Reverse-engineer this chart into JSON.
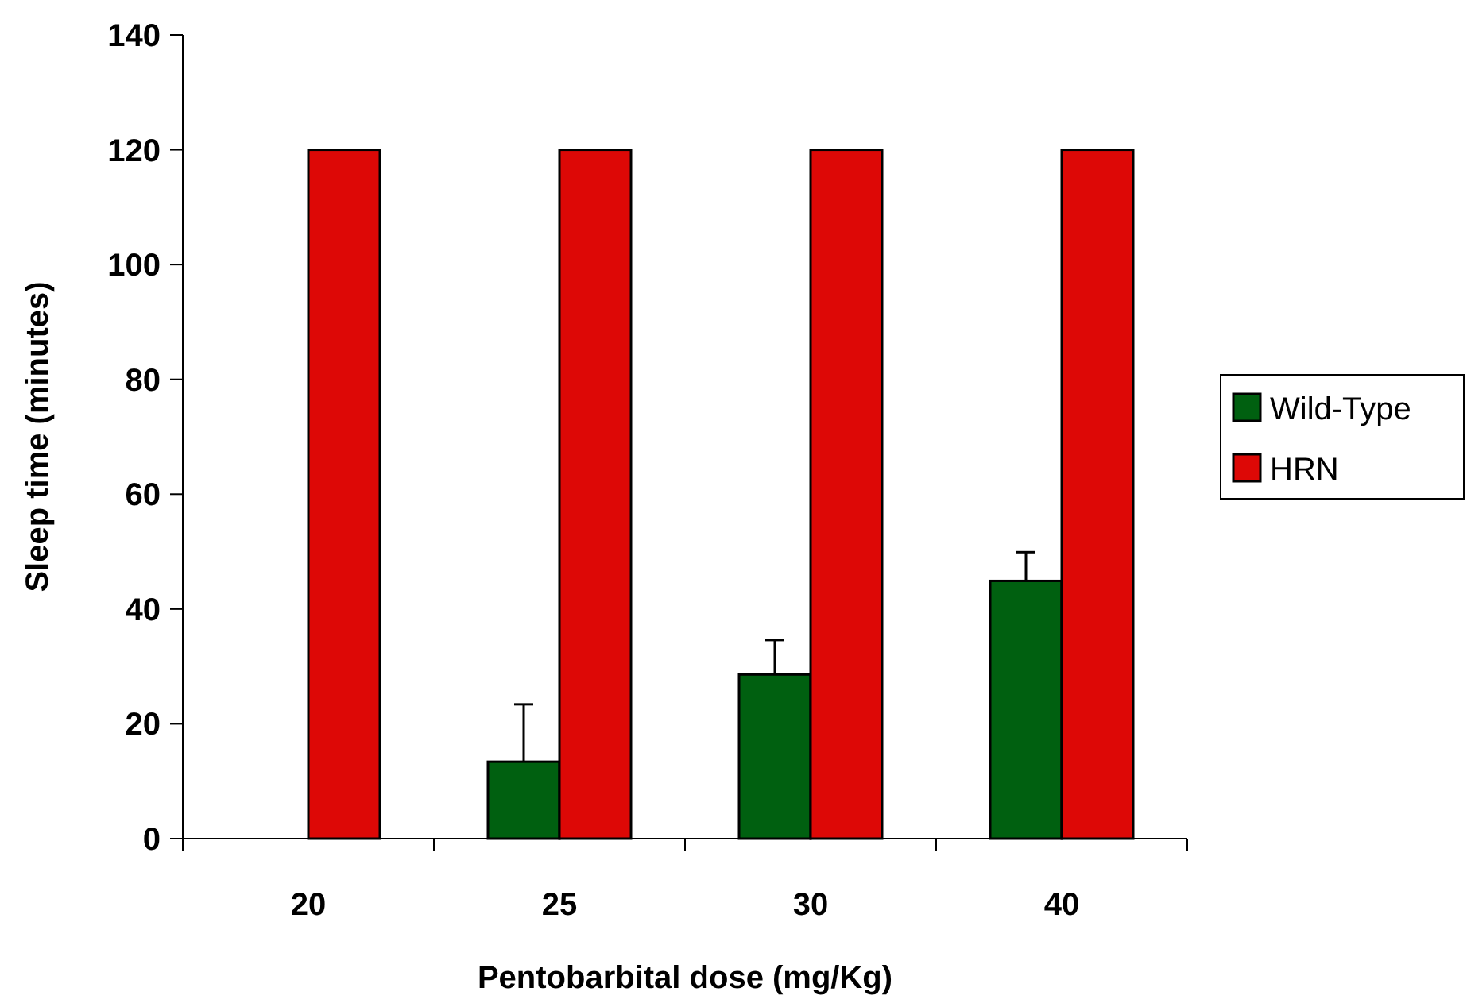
{
  "chart_data": {
    "type": "bar",
    "xlabel": "Pentobarbital dose (mg/Kg)",
    "ylabel": "Sleep time (minutes)",
    "categories": [
      "20",
      "25",
      "30",
      "40"
    ],
    "series": [
      {
        "name": "Wild-Type",
        "color": "#006010",
        "values": [
          0,
          13.4,
          28.6,
          44.9
        ],
        "errors": [
          null,
          [
            13.4,
            23.4
          ],
          [
            28.6,
            34.6
          ],
          [
            44.9,
            49.9
          ]
        ]
      },
      {
        "name": "HRN",
        "color": "#dd0806",
        "values": [
          120,
          120,
          120,
          120
        ]
      }
    ],
    "ylim": [
      0,
      140
    ],
    "yticks": [
      0,
      20,
      40,
      60,
      80,
      100,
      120,
      140
    ],
    "grid": false,
    "legend": "right"
  }
}
